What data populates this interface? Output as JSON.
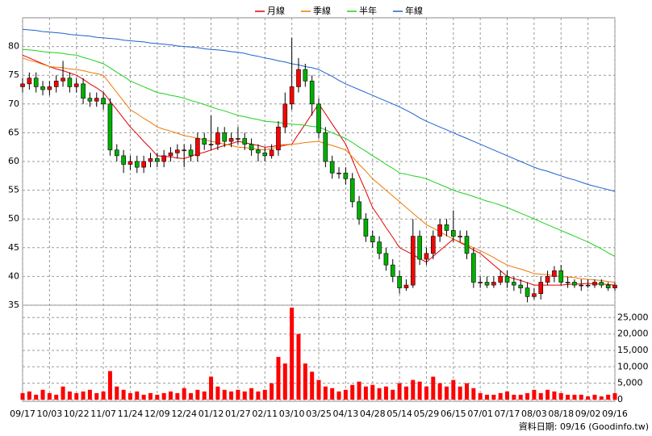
{
  "chart_data": {
    "type": "candlestick",
    "categories": [
      "09/17",
      null,
      null,
      null,
      "10/03",
      null,
      null,
      null,
      "10/22",
      null,
      null,
      null,
      "11/07",
      null,
      null,
      null,
      "11/24",
      null,
      null,
      null,
      "12/09",
      null,
      null,
      null,
      "12/24",
      null,
      null,
      null,
      "01/12",
      null,
      null,
      null,
      "01/27",
      null,
      null,
      null,
      "02/11",
      null,
      null,
      null,
      "03/10",
      null,
      null,
      null,
      "03/25",
      null,
      null,
      null,
      "04/13",
      null,
      null,
      null,
      "04/28",
      null,
      null,
      null,
      "05/14",
      null,
      null,
      null,
      "05/29",
      null,
      null,
      null,
      "06/15",
      null,
      null,
      null,
      "07/01",
      null,
      null,
      null,
      "07/17",
      null,
      null,
      null,
      "08/03",
      null,
      null,
      null,
      "08/18",
      null,
      null,
      null,
      "09/02",
      null,
      null,
      null,
      "09/16"
    ],
    "open": [
      73,
      73.5,
      74.5,
      73,
      72.5,
      73,
      74,
      74.5,
      73,
      73.5,
      71,
      70.5,
      71,
      70,
      62,
      61,
      59.5,
      60,
      59,
      60,
      60.5,
      60,
      61,
      61.5,
      62,
      62,
      61,
      64,
      63,
      63,
      65,
      63.5,
      64,
      64,
      63,
      62,
      61.5,
      61,
      62,
      66,
      70,
      73,
      76,
      74,
      70,
      65,
      60,
      58,
      58,
      57,
      53,
      50,
      47,
      46,
      44,
      42,
      40,
      38,
      38.5,
      47,
      43,
      44,
      47,
      49,
      48,
      47,
      47,
      44,
      39,
      39,
      38.5,
      39,
      40,
      39,
      38.5,
      38,
      36.5,
      37,
      39,
      40,
      41,
      39,
      39,
      38.5,
      38.5,
      38.5,
      39,
      38.5,
      38
    ],
    "high": [
      74.5,
      75.5,
      75.5,
      74,
      74,
      75,
      77.5,
      75.5,
      74.5,
      74.5,
      72,
      72,
      72,
      71,
      63,
      62,
      61,
      61,
      61,
      61.5,
      61.5,
      62,
      62.5,
      63,
      63,
      63,
      65,
      65,
      68,
      66,
      66,
      65,
      66,
      65,
      64,
      63,
      62.5,
      63,
      67,
      72,
      81.5,
      78,
      77,
      75,
      71,
      66,
      61,
      59,
      59,
      58,
      54,
      51,
      48,
      47,
      45,
      43,
      41,
      39.5,
      50,
      48,
      45,
      48,
      50,
      50,
      51.5,
      48,
      48,
      45,
      40,
      40,
      40,
      41,
      41,
      40,
      39.5,
      39,
      38,
      40,
      41,
      41.8,
      42,
      40,
      39.5,
      39.5,
      39.5,
      39.5,
      39.5,
      39,
      39
    ],
    "low": [
      72,
      72.5,
      72,
      71.5,
      71.5,
      72,
      73,
      72,
      72,
      70,
      69.5,
      69.5,
      69,
      61,
      60,
      58,
      58.5,
      58,
      58,
      59,
      59,
      59,
      60,
      60.5,
      59,
      60,
      60,
      62,
      62,
      62,
      62.5,
      62.5,
      63,
      62,
      61,
      60,
      60,
      60.5,
      61,
      65,
      69,
      72,
      73,
      68,
      64,
      59,
      57,
      57,
      56,
      52,
      49,
      46,
      45,
      43,
      41,
      39,
      37,
      37.5,
      38,
      42,
      42,
      43,
      46,
      47,
      46,
      46,
      43,
      38,
      38,
      38,
      38,
      38.5,
      38,
      37.5,
      37,
      35.5,
      36,
      36,
      38.5,
      39,
      38.5,
      38,
      38,
      37.5,
      38,
      38,
      38,
      37.5,
      37.5
    ],
    "close": [
      73.5,
      74.5,
      73,
      72.5,
      73,
      74,
      74.5,
      73,
      73.5,
      71,
      70.5,
      71,
      70,
      62,
      61,
      59.5,
      60,
      59,
      60,
      60.5,
      60,
      61,
      61.5,
      62,
      62,
      61,
      64,
      63,
      63,
      65,
      63.5,
      64,
      64,
      63,
      62,
      61.5,
      61,
      62,
      66,
      70,
      73,
      76,
      74,
      70,
      65,
      60,
      58,
      58,
      57,
      53,
      50,
      47,
      46,
      44,
      42,
      40,
      38,
      38.5,
      47,
      43,
      44,
      47,
      49,
      48,
      47,
      47,
      44,
      39,
      39,
      38.5,
      39,
      40,
      39,
      38.5,
      38,
      36.5,
      37,
      39,
      40,
      41,
      39,
      39,
      38.5,
      38.5,
      38.5,
      39,
      38.5,
      38,
      38.5
    ],
    "up_color": "#ff0000",
    "down_color": "#00b000",
    "ylim": [
      35,
      85
    ],
    "yticks": [
      35,
      40,
      45,
      50,
      55,
      60,
      65,
      70,
      75,
      80
    ],
    "grid": true,
    "series": [
      {
        "name": "月線",
        "color": "#e00000",
        "values": [
          78.5,
          78,
          77.5,
          77,
          76.5,
          76.1,
          75.8,
          75.4,
          75,
          74.3,
          73.5,
          72.8,
          72,
          70.5,
          69,
          67.5,
          66,
          64.8,
          63.5,
          62.3,
          61,
          60.9,
          60.8,
          60.6,
          60.5,
          60.9,
          61.3,
          61.6,
          62,
          62.4,
          62.8,
          63.1,
          63.5,
          63.3,
          63,
          62.8,
          62.5,
          62.6,
          62.8,
          62.9,
          63,
          64.8,
          66.5,
          68.3,
          70,
          68.3,
          66.5,
          64.8,
          63,
          60.3,
          57.5,
          54.8,
          52,
          50.3,
          48.5,
          46.8,
          45,
          44.4,
          43.8,
          43.1,
          42.5,
          43.5,
          44.5,
          45.5,
          46.5,
          45.9,
          45.3,
          44.6,
          44,
          43,
          42,
          41,
          40,
          39.6,
          39.3,
          38.9,
          38.5,
          38.5,
          38.5,
          38.5,
          38.5,
          38.6,
          38.7,
          38.7,
          38.8,
          38.7,
          38.7,
          38.6,
          38.5
        ]
      },
      {
        "name": "季線",
        "color": "#f07800",
        "values": [
          78,
          77.6,
          77.3,
          76.9,
          76.5,
          76.4,
          76.3,
          76.1,
          76,
          75.8,
          75.5,
          75.3,
          75,
          73.5,
          72,
          70.5,
          69,
          68.3,
          67.5,
          66.8,
          66,
          65.6,
          65.3,
          64.9,
          64.5,
          64.3,
          64,
          63.8,
          63.5,
          63.3,
          63,
          62.8,
          62.5,
          62.4,
          62.3,
          62.1,
          62,
          62.3,
          62.5,
          62.8,
          63,
          63.1,
          63.3,
          63.4,
          63.5,
          63.1,
          62.8,
          62.4,
          62,
          60.8,
          59.5,
          58.3,
          57,
          56,
          55,
          54,
          53,
          52,
          51,
          50,
          49,
          48.4,
          47.8,
          47.1,
          46.5,
          46,
          45.5,
          45,
          44.5,
          43.9,
          43.3,
          42.6,
          42,
          41.6,
          41.3,
          40.9,
          40.5,
          40.4,
          40.3,
          40.1,
          40,
          39.9,
          39.8,
          39.6,
          39.5,
          39.4,
          39.3,
          39.1,
          39
        ]
      },
      {
        "name": "半年",
        "color": "#20d020",
        "values": [
          79.5,
          79.4,
          79.3,
          79.1,
          79,
          78.9,
          78.8,
          78.6,
          78.5,
          78.1,
          77.8,
          77.4,
          77,
          76.3,
          75.5,
          74.8,
          74,
          73.5,
          73,
          72.5,
          72,
          71.8,
          71.5,
          71.3,
          71,
          70.6,
          70.3,
          69.9,
          69.5,
          69.1,
          68.8,
          68.4,
          68,
          67.8,
          67.5,
          67.3,
          67,
          66.9,
          66.8,
          66.6,
          66.5,
          66.4,
          66.3,
          66.1,
          66,
          65.5,
          65,
          64.5,
          64,
          63.3,
          62.5,
          61.8,
          61,
          60.3,
          59.5,
          58.8,
          58,
          57.8,
          57.5,
          57.3,
          57,
          56.5,
          56,
          55.5,
          55,
          54.6,
          54.3,
          53.9,
          53.5,
          53.1,
          52.8,
          52.4,
          52,
          51.5,
          51,
          50.5,
          50,
          49.5,
          49,
          48.5,
          48,
          47.5,
          47,
          46.5,
          46,
          45.4,
          44.8,
          44.1,
          43.5
        ]
      },
      {
        "name": "年線",
        "color": "#2060d0",
        "values": [
          83,
          82.9,
          82.8,
          82.6,
          82.5,
          82.4,
          82.3,
          82.1,
          82,
          81.9,
          81.8,
          81.6,
          81.5,
          81.4,
          81.3,
          81.1,
          81,
          80.9,
          80.8,
          80.6,
          80.5,
          80.4,
          80.3,
          80.1,
          80,
          79.9,
          79.8,
          79.6,
          79.5,
          79.4,
          79.3,
          79.1,
          79,
          78.8,
          78.5,
          78.3,
          78,
          77.8,
          77.5,
          77.3,
          77,
          76.8,
          76.5,
          76.3,
          76,
          75.4,
          74.8,
          74.1,
          73.5,
          73,
          72.5,
          72,
          71.5,
          71,
          70.5,
          70,
          69.5,
          68.9,
          68.3,
          67.6,
          67,
          66.5,
          66,
          65.5,
          65,
          64.5,
          64,
          63.5,
          63,
          62.5,
          62,
          61.5,
          61,
          60.5,
          60,
          59.5,
          59,
          58.6,
          58.3,
          57.9,
          57.5,
          57.1,
          56.8,
          56.4,
          56,
          55.7,
          55.4,
          55.1,
          54.8
        ]
      }
    ],
    "volume": {
      "color": "#ff0000",
      "values": [
        2000,
        2500,
        1500,
        3000,
        2000,
        1500,
        4000,
        2500,
        2000,
        2500,
        3000,
        2000,
        2500,
        8700,
        4000,
        3000,
        2000,
        2500,
        1500,
        2000,
        1500,
        2000,
        2500,
        2000,
        3500,
        2000,
        3000,
        2500,
        7000,
        4000,
        3000,
        2500,
        3000,
        2500,
        3500,
        2500,
        3000,
        5000,
        13000,
        11000,
        28000,
        20000,
        11000,
        8500,
        6000,
        4000,
        3500,
        2500,
        3000,
        4500,
        5500,
        4000,
        4500,
        3500,
        4000,
        3000,
        5000,
        4000,
        6000,
        5500,
        4000,
        7000,
        5000,
        4000,
        6000,
        4000,
        5000,
        3500,
        2000,
        1500,
        1500,
        2000,
        2500,
        1500,
        1500,
        2000,
        3000,
        2000,
        3000,
        2500,
        2000,
        1500,
        1500,
        1500,
        1000,
        1500,
        1000,
        1500,
        2000
      ],
      "ylim": [
        0,
        28750
      ],
      "yticks": [
        0,
        {
          "value": 5000,
          "label": "5,000"
        },
        {
          "value": 10000,
          "label": "10,000"
        },
        {
          "value": 15000,
          "label": "15,000"
        },
        {
          "value": 20000,
          "label": "20,000"
        },
        {
          "value": 25000,
          "label": "25,000"
        }
      ]
    },
    "footer": "資料日期: 09/16 (Goodinfo.tw)"
  }
}
